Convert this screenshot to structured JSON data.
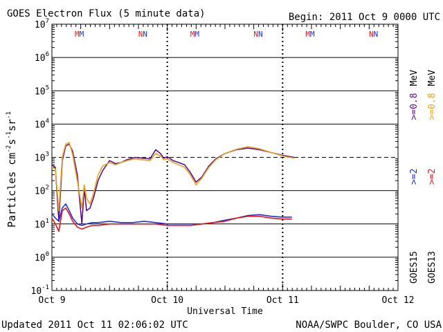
{
  "title": "GOES Electron Flux (5 minute data)",
  "begin_label": "Begin: 2011 Oct 9 0000 UTC",
  "footer": {
    "updated": "Updated 2011 Oct 11 02:06:02 UTC",
    "credit": "NOAA/SWPC Boulder, CO USA"
  },
  "colors": {
    "goes15_2mev": "#1a2fe0",
    "goes13_2mev": "#ee1111",
    "goes15_08mev": "#5a0e8c",
    "goes13_08mev": "#e8a21a",
    "frame": "#000000"
  },
  "chart_data": {
    "type": "line",
    "title": "GOES Electron Flux (5 minute data)",
    "xlabel": "Universal Time",
    "ylabel": "Particles cm-2s-1sr-1",
    "ylabel_parts": {
      "base": "Particles cm",
      "exp1": "-2",
      "mid": "s",
      "exp2": "-1",
      "mid2": "sr",
      "exp3": "-1"
    },
    "x_unit": "days since 2011 Oct 9 0000 UTC",
    "xlim": [
      0,
      3
    ],
    "x_ticks": [
      {
        "x": 0,
        "label": "Oct 9"
      },
      {
        "x": 1,
        "label": "Oct 10"
      },
      {
        "x": 2,
        "label": "Oct 11"
      },
      {
        "x": 3,
        "label": "Oct 12"
      }
    ],
    "ylim_log10": [
      -1,
      7
    ],
    "y_ticks": [
      {
        "exp": 7,
        "base": "10",
        "sup": "7"
      },
      {
        "exp": 6,
        "base": "10",
        "sup": "6"
      },
      {
        "exp": 5,
        "base": "10",
        "sup": "5"
      },
      {
        "exp": 4,
        "base": "10",
        "sup": "4"
      },
      {
        "exp": 3,
        "base": "10",
        "sup": "3"
      },
      {
        "exp": 2,
        "base": "10",
        "sup": "2"
      },
      {
        "exp": 1,
        "base": "10",
        "sup": "1"
      },
      {
        "exp": 0,
        "base": "10",
        "sup": "0"
      },
      {
        "exp": -1,
        "base": "10",
        "sup": "-1"
      }
    ],
    "grid_log10": [
      6,
      5,
      4,
      2,
      1,
      0
    ],
    "threshold_log10": 3,
    "day_markers": [
      1,
      2
    ],
    "mn_markers": [
      {
        "x": 0.25,
        "label": "M",
        "a": "M"
      },
      {
        "x": 0.8,
        "label": "N",
        "a": "N"
      },
      {
        "x": 1.25,
        "label": "M",
        "a": "M"
      },
      {
        "x": 1.8,
        "label": "N",
        "a": "N"
      },
      {
        "x": 2.25,
        "label": "M",
        "a": "M"
      },
      {
        "x": 2.8,
        "label": "N",
        "a": "N"
      }
    ],
    "legend": {
      "goes15_label": "GOES15",
      "goes13_label": "GOES13",
      "ge2_blue": ">=2",
      "ge2_red": ">=2",
      "ge08_purple": ">=0.8",
      "ge08_orange": ">=0.8",
      "mev1": "MeV",
      "mev2": "MeV"
    },
    "series": [
      {
        "name": "GOES15 >=0.8 MeV",
        "color": "#5a0e8c",
        "x": [
          0,
          0.03,
          0.06,
          0.09,
          0.12,
          0.15,
          0.18,
          0.22,
          0.26,
          0.28,
          0.3,
          0.33,
          0.36,
          0.4,
          0.44,
          0.5,
          0.55,
          0.6,
          0.65,
          0.72,
          0.78,
          0.85,
          0.9,
          0.94,
          0.97,
          1.0,
          1.05,
          1.1,
          1.15,
          1.2,
          1.25,
          1.3,
          1.36,
          1.42,
          1.5,
          1.6,
          1.7,
          1.8,
          1.9,
          2.0,
          2.1
        ],
        "y": [
          600,
          500,
          12,
          800,
          2200,
          2500,
          1500,
          300,
          10,
          120,
          25,
          30,
          60,
          200,
          400,
          800,
          650,
          700,
          850,
          1000,
          950,
          900,
          1700,
          1300,
          950,
          1050,
          800,
          700,
          600,
          350,
          180,
          260,
          550,
          900,
          1300,
          1700,
          1900,
          1700,
          1400,
          1150,
          1000
        ]
      },
      {
        "name": "GOES13 >=0.8 MeV",
        "color": "#e8a21a",
        "x": [
          0,
          0.03,
          0.06,
          0.09,
          0.12,
          0.15,
          0.18,
          0.22,
          0.26,
          0.28,
          0.3,
          0.33,
          0.36,
          0.4,
          0.44,
          0.5,
          0.55,
          0.6,
          0.65,
          0.72,
          0.78,
          0.85,
          0.9,
          0.94,
          0.97,
          1.0,
          1.05,
          1.1,
          1.15,
          1.2,
          1.25,
          1.3,
          1.36,
          1.42,
          1.5,
          1.6,
          1.7,
          1.8,
          1.9,
          2.0,
          2.1
        ],
        "y": [
          500,
          450,
          25,
          1000,
          2500,
          2800,
          1200,
          200,
          30,
          150,
          60,
          40,
          80,
          300,
          550,
          700,
          600,
          700,
          800,
          900,
          850,
          800,
          1300,
          1100,
          850,
          900,
          700,
          600,
          500,
          300,
          150,
          240,
          500,
          850,
          1300,
          1750,
          2100,
          1800,
          1400,
          1100,
          950
        ]
      },
      {
        "name": "GOES15 >=2 MeV",
        "color": "#1a2fe0",
        "x": [
          0,
          0.03,
          0.06,
          0.09,
          0.12,
          0.15,
          0.18,
          0.22,
          0.26,
          0.3,
          0.35,
          0.4,
          0.5,
          0.6,
          0.7,
          0.8,
          0.9,
          1.0,
          1.1,
          1.2,
          1.3,
          1.4,
          1.5,
          1.6,
          1.7,
          1.8,
          1.9,
          2.0,
          2.08
        ],
        "y": [
          20,
          15,
          12,
          30,
          40,
          25,
          15,
          10,
          9,
          10,
          11,
          11,
          12,
          11,
          11,
          12,
          11,
          10,
          10,
          10,
          10,
          11,
          13,
          15,
          18,
          19,
          17,
          16,
          16
        ]
      },
      {
        "name": "GOES13 >=2 MeV",
        "color": "#ee1111",
        "x": [
          0,
          0.03,
          0.06,
          0.09,
          0.12,
          0.15,
          0.18,
          0.22,
          0.26,
          0.3,
          0.35,
          0.4,
          0.5,
          0.6,
          0.7,
          0.8,
          0.9,
          1.0,
          1.1,
          1.2,
          1.3,
          1.4,
          1.5,
          1.6,
          1.7,
          1.8,
          1.9,
          2.0,
          2.08
        ],
        "y": [
          15,
          10,
          6,
          25,
          30,
          20,
          12,
          8,
          7,
          8,
          9,
          9,
          10,
          10,
          10,
          10,
          10,
          9,
          9,
          9,
          10,
          11,
          12,
          15,
          17,
          17,
          15,
          14,
          14
        ]
      }
    ]
  }
}
